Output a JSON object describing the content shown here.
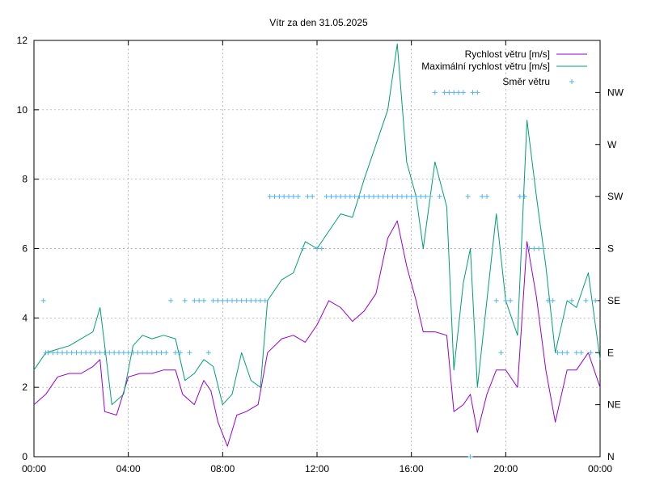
{
  "chart_data": {
    "type": "line",
    "title": "Vítr za den 31.05.2025",
    "x_ticks": [
      "00:00",
      "04:00",
      "08:00",
      "12:00",
      "16:00",
      "20:00",
      "00:00"
    ],
    "x_range_hours": [
      0,
      24
    ],
    "y_left": {
      "range": [
        0,
        12
      ],
      "ticks": [
        "0",
        "2",
        "4",
        "6",
        "8",
        "10",
        "12"
      ]
    },
    "y_right": {
      "ticks": [
        "N",
        "NE",
        "E",
        "SE",
        "S",
        "SW",
        "W",
        "NW"
      ]
    },
    "grid": "dashed",
    "legend_position": "top-right",
    "colors": {
      "speed": "#9400d3",
      "max_speed": "#009e73",
      "direction": "#56b4e9"
    },
    "series": [
      {
        "name": "Rychlost větru [m/s]",
        "points": [
          [
            0,
            1.5
          ],
          [
            0.5,
            1.8
          ],
          [
            1,
            2.3
          ],
          [
            1.5,
            2.4
          ],
          [
            2,
            2.4
          ],
          [
            2.5,
            2.6
          ],
          [
            2.8,
            2.8
          ],
          [
            3,
            1.3
          ],
          [
            3.5,
            1.2
          ],
          [
            4,
            2.3
          ],
          [
            4.5,
            2.4
          ],
          [
            5,
            2.4
          ],
          [
            5.5,
            2.5
          ],
          [
            6,
            2.5
          ],
          [
            6.3,
            1.8
          ],
          [
            6.8,
            1.5
          ],
          [
            7.2,
            2.2
          ],
          [
            7.5,
            1.9
          ],
          [
            7.8,
            1.0
          ],
          [
            8.2,
            0.3
          ],
          [
            8.6,
            1.2
          ],
          [
            9,
            1.3
          ],
          [
            9.5,
            1.5
          ],
          [
            9.9,
            3.0
          ],
          [
            10.5,
            3.4
          ],
          [
            11,
            3.5
          ],
          [
            11.5,
            3.3
          ],
          [
            12,
            3.8
          ],
          [
            12.5,
            4.5
          ],
          [
            13,
            4.3
          ],
          [
            13.5,
            3.9
          ],
          [
            14,
            4.2
          ],
          [
            14.5,
            4.7
          ],
          [
            15,
            6.3
          ],
          [
            15.4,
            6.8
          ],
          [
            15.8,
            5.5
          ],
          [
            16.2,
            4.5
          ],
          [
            16.5,
            3.6
          ],
          [
            17,
            3.6
          ],
          [
            17.5,
            3.5
          ],
          [
            17.8,
            1.3
          ],
          [
            18.2,
            1.5
          ],
          [
            18.5,
            1.8
          ],
          [
            18.8,
            0.7
          ],
          [
            19.2,
            1.8
          ],
          [
            19.6,
            2.5
          ],
          [
            20,
            2.5
          ],
          [
            20.5,
            2.0
          ],
          [
            20.9,
            6.2
          ],
          [
            21.3,
            4.6
          ],
          [
            21.7,
            2.5
          ],
          [
            22.1,
            1.0
          ],
          [
            22.6,
            2.5
          ],
          [
            23,
            2.5
          ],
          [
            23.5,
            3.0
          ],
          [
            24,
            2.0
          ]
        ]
      },
      {
        "name": "Maximální rychlost větru [m/s]",
        "points": [
          [
            0,
            2.5
          ],
          [
            0.5,
            3.0
          ],
          [
            1,
            3.1
          ],
          [
            1.5,
            3.2
          ],
          [
            2,
            3.4
          ],
          [
            2.5,
            3.6
          ],
          [
            2.8,
            4.3
          ],
          [
            3,
            3.2
          ],
          [
            3.3,
            1.5
          ],
          [
            3.8,
            1.8
          ],
          [
            4.2,
            3.2
          ],
          [
            4.6,
            3.5
          ],
          [
            5,
            3.4
          ],
          [
            5.5,
            3.5
          ],
          [
            6,
            3.4
          ],
          [
            6.4,
            2.2
          ],
          [
            6.8,
            2.4
          ],
          [
            7.2,
            2.8
          ],
          [
            7.6,
            2.6
          ],
          [
            8,
            1.5
          ],
          [
            8.4,
            1.8
          ],
          [
            8.8,
            3.0
          ],
          [
            9.2,
            2.2
          ],
          [
            9.6,
            2.0
          ],
          [
            9.9,
            4.5
          ],
          [
            10.5,
            5.1
          ],
          [
            11,
            5.3
          ],
          [
            11.5,
            6.2
          ],
          [
            12,
            6.0
          ],
          [
            12.5,
            6.5
          ],
          [
            13,
            7.0
          ],
          [
            13.5,
            6.9
          ],
          [
            14,
            8.0
          ],
          [
            14.5,
            9.0
          ],
          [
            15,
            10.0
          ],
          [
            15.4,
            11.9
          ],
          [
            15.8,
            8.5
          ],
          [
            16.2,
            7.5
          ],
          [
            16.5,
            6.0
          ],
          [
            17,
            8.5
          ],
          [
            17.5,
            7.2
          ],
          [
            17.8,
            2.5
          ],
          [
            18.2,
            5.0
          ],
          [
            18.5,
            6.0
          ],
          [
            18.8,
            2.0
          ],
          [
            19.2,
            4.5
          ],
          [
            19.6,
            7.0
          ],
          [
            20,
            4.5
          ],
          [
            20.5,
            3.5
          ],
          [
            20.9,
            9.7
          ],
          [
            21.3,
            7.5
          ],
          [
            21.7,
            5.5
          ],
          [
            22.1,
            3.0
          ],
          [
            22.6,
            4.5
          ],
          [
            23,
            4.3
          ],
          [
            23.5,
            5.3
          ],
          [
            24,
            2.8
          ]
        ]
      },
      {
        "name": "Směr větru",
        "marker": "plus",
        "direction_points": [
          [
            0.4,
            3
          ],
          [
            0.5,
            2
          ],
          [
            0.6,
            2
          ],
          [
            0.8,
            2
          ],
          [
            1.0,
            2
          ],
          [
            1.2,
            2
          ],
          [
            1.4,
            2
          ],
          [
            1.6,
            2
          ],
          [
            1.8,
            2
          ],
          [
            2.0,
            2
          ],
          [
            2.2,
            2
          ],
          [
            2.4,
            2
          ],
          [
            2.6,
            2
          ],
          [
            2.8,
            2
          ],
          [
            3.0,
            2
          ],
          [
            3.2,
            2
          ],
          [
            3.4,
            2
          ],
          [
            3.6,
            2
          ],
          [
            3.8,
            2
          ],
          [
            4.0,
            2
          ],
          [
            4.2,
            2
          ],
          [
            4.4,
            2
          ],
          [
            4.6,
            2
          ],
          [
            4.8,
            2
          ],
          [
            5.0,
            2
          ],
          [
            5.2,
            2
          ],
          [
            5.4,
            2
          ],
          [
            5.6,
            2
          ],
          [
            5.8,
            3
          ],
          [
            6.0,
            2
          ],
          [
            6.2,
            2
          ],
          [
            6.4,
            3
          ],
          [
            6.6,
            2
          ],
          [
            6.8,
            3
          ],
          [
            7.0,
            3
          ],
          [
            7.2,
            3
          ],
          [
            7.4,
            2
          ],
          [
            7.6,
            3
          ],
          [
            7.8,
            3
          ],
          [
            8.0,
            3
          ],
          [
            8.2,
            3
          ],
          [
            8.4,
            3
          ],
          [
            8.6,
            3
          ],
          [
            8.8,
            3
          ],
          [
            9.0,
            3
          ],
          [
            9.2,
            3
          ],
          [
            9.4,
            3
          ],
          [
            9.6,
            3
          ],
          [
            9.8,
            3
          ],
          [
            10.0,
            5
          ],
          [
            10.2,
            5
          ],
          [
            10.4,
            5
          ],
          [
            10.6,
            5
          ],
          [
            10.8,
            5
          ],
          [
            11.0,
            5
          ],
          [
            11.2,
            5
          ],
          [
            11.4,
            4
          ],
          [
            11.6,
            5
          ],
          [
            11.8,
            5
          ],
          [
            12.0,
            4
          ],
          [
            12.2,
            4
          ],
          [
            12.4,
            5
          ],
          [
            12.6,
            5
          ],
          [
            12.8,
            5
          ],
          [
            13.0,
            5
          ],
          [
            13.2,
            5
          ],
          [
            13.4,
            5
          ],
          [
            13.6,
            5
          ],
          [
            13.8,
            5
          ],
          [
            14.0,
            5
          ],
          [
            14.2,
            5
          ],
          [
            14.4,
            5
          ],
          [
            14.6,
            5
          ],
          [
            14.8,
            5
          ],
          [
            15.0,
            5
          ],
          [
            15.2,
            5
          ],
          [
            15.4,
            5
          ],
          [
            15.6,
            5
          ],
          [
            15.8,
            5
          ],
          [
            16.0,
            5
          ],
          [
            16.2,
            5
          ],
          [
            16.4,
            5
          ],
          [
            16.6,
            5
          ],
          [
            16.8,
            5
          ],
          [
            17.0,
            7
          ],
          [
            17.2,
            5
          ],
          [
            17.4,
            7
          ],
          [
            17.6,
            7
          ],
          [
            17.8,
            7
          ],
          [
            18.0,
            7
          ],
          [
            18.2,
            7
          ],
          [
            18.4,
            5
          ],
          [
            18.6,
            7
          ],
          [
            18.8,
            7
          ],
          [
            19.0,
            5
          ],
          [
            19.2,
            5
          ],
          [
            19.6,
            3
          ],
          [
            19.8,
            2
          ],
          [
            20.0,
            3
          ],
          [
            20.2,
            3
          ],
          [
            20.6,
            5
          ],
          [
            20.8,
            5
          ],
          [
            21.0,
            4
          ],
          [
            21.2,
            4
          ],
          [
            21.4,
            4
          ],
          [
            21.6,
            4
          ],
          [
            21.8,
            3
          ],
          [
            22.0,
            3
          ],
          [
            22.2,
            2
          ],
          [
            22.4,
            2
          ],
          [
            22.6,
            2
          ],
          [
            22.8,
            3
          ],
          [
            23.0,
            2
          ],
          [
            23.2,
            2
          ],
          [
            23.4,
            3
          ],
          [
            23.6,
            2
          ],
          [
            23.8,
            3
          ],
          [
            18.5,
            0
          ]
        ]
      }
    ]
  }
}
